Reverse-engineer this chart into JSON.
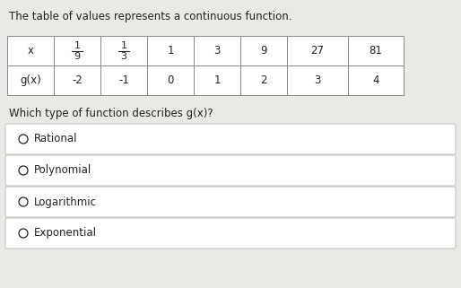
{
  "title": "The table of values represents a continuous function.",
  "table_headers": [
    "x",
    "1/9",
    "1/3",
    "1",
    "3",
    "9",
    "27",
    "81"
  ],
  "table_row_label": "g(x)",
  "table_row_values": [
    "-2",
    "-1",
    "0",
    "1",
    "2",
    "3",
    "4"
  ],
  "question": "Which type of function describes g(x)?",
  "options": [
    "Rational",
    "Polynomial",
    "Logarithmic",
    "Exponential"
  ],
  "bg_color": "#ebe9e5",
  "table_border": "#888888",
  "option_border": "#c8c6c2",
  "text_color": "#222222",
  "title_fontsize": 8.5,
  "question_fontsize": 8.5,
  "option_fontsize": 8.5,
  "table_fontsize": 8.5
}
